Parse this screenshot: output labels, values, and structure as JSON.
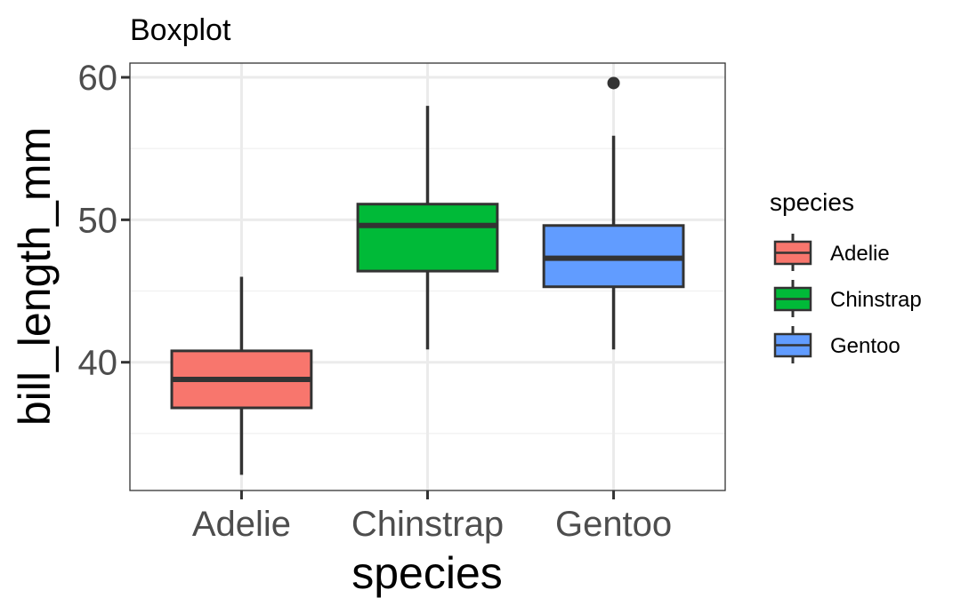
{
  "chart_data": {
    "type": "boxplot",
    "title": "Boxplot",
    "xlabel": "species",
    "ylabel": "bill_length_mm",
    "categories": [
      "Adelie",
      "Chinstrap",
      "Gentoo"
    ],
    "ylim": [
      31,
      61
    ],
    "yticks": [
      40,
      50,
      60
    ],
    "grid": true,
    "boxes": [
      {
        "category": "Adelie",
        "color": "#F8766D",
        "whisker_low": 32.1,
        "q1": 36.8,
        "median": 38.8,
        "q3": 40.8,
        "whisker_high": 46.0,
        "outliers": []
      },
      {
        "category": "Chinstrap",
        "color": "#00BA38",
        "whisker_low": 40.9,
        "q1": 46.4,
        "median": 49.6,
        "q3": 51.1,
        "whisker_high": 58.0,
        "outliers": []
      },
      {
        "category": "Gentoo",
        "color": "#619CFF",
        "whisker_low": 40.9,
        "q1": 45.3,
        "median": 47.3,
        "q3": 49.6,
        "whisker_high": 55.9,
        "outliers": [
          59.6
        ]
      }
    ],
    "legend": {
      "title": "species",
      "position": "right",
      "items": [
        {
          "label": "Adelie",
          "color": "#F8766D"
        },
        {
          "label": "Chinstrap",
          "color": "#00BA38"
        },
        {
          "label": "Gentoo",
          "color": "#619CFF"
        }
      ]
    }
  }
}
